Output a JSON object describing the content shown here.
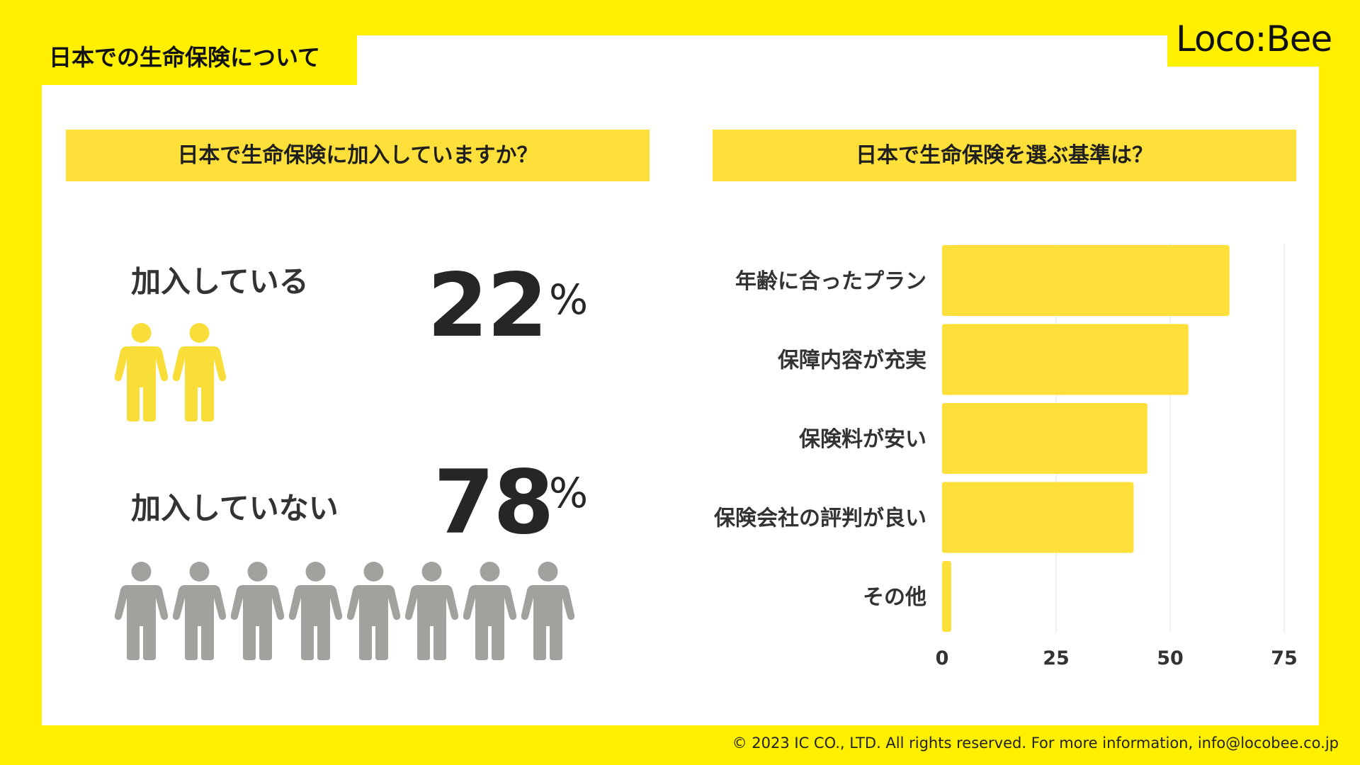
{
  "page": {
    "title": "日本での生命保険について",
    "logo": "Loco:Bee",
    "footer": "© 2023 IC CO., LTD. All rights reserved. For more information, info@locobee.co.jp"
  },
  "colors": {
    "background": "#FFF000",
    "accent": "#FFE03A",
    "person_enrolled": "#F9DE3A",
    "person_not_enrolled": "#A2A19E",
    "text": "#2b2b2b"
  },
  "left": {
    "heading": "日本で生命保険に加入していますか？",
    "enrolled": {
      "label": "加入している",
      "value": "22",
      "unit": "%",
      "icon": "person-icon",
      "count": 2
    },
    "not_enrolled": {
      "label": "加入していない",
      "value": "78",
      "unit": "%",
      "icon": "person-icon",
      "count": 8
    }
  },
  "right": {
    "heading": "日本で生命保険を選ぶ基準は？"
  },
  "chart_data": [
    {
      "type": "pie",
      "categories": [
        "加入している",
        "加入していない"
      ],
      "values": [
        22,
        78
      ]
    },
    {
      "type": "bar",
      "orientation": "horizontal",
      "categories": [
        "年齢に合ったプラン",
        "保障内容が充実",
        "保険料が安い",
        "保険会社の評判が良い",
        "その他"
      ],
      "values": [
        63,
        54,
        45,
        42,
        2
      ],
      "xlim": [
        0,
        75
      ],
      "xticks": [
        "0",
        "25",
        "50",
        "75"
      ],
      "grid": true,
      "bar_color": "#FFE03A"
    }
  ]
}
